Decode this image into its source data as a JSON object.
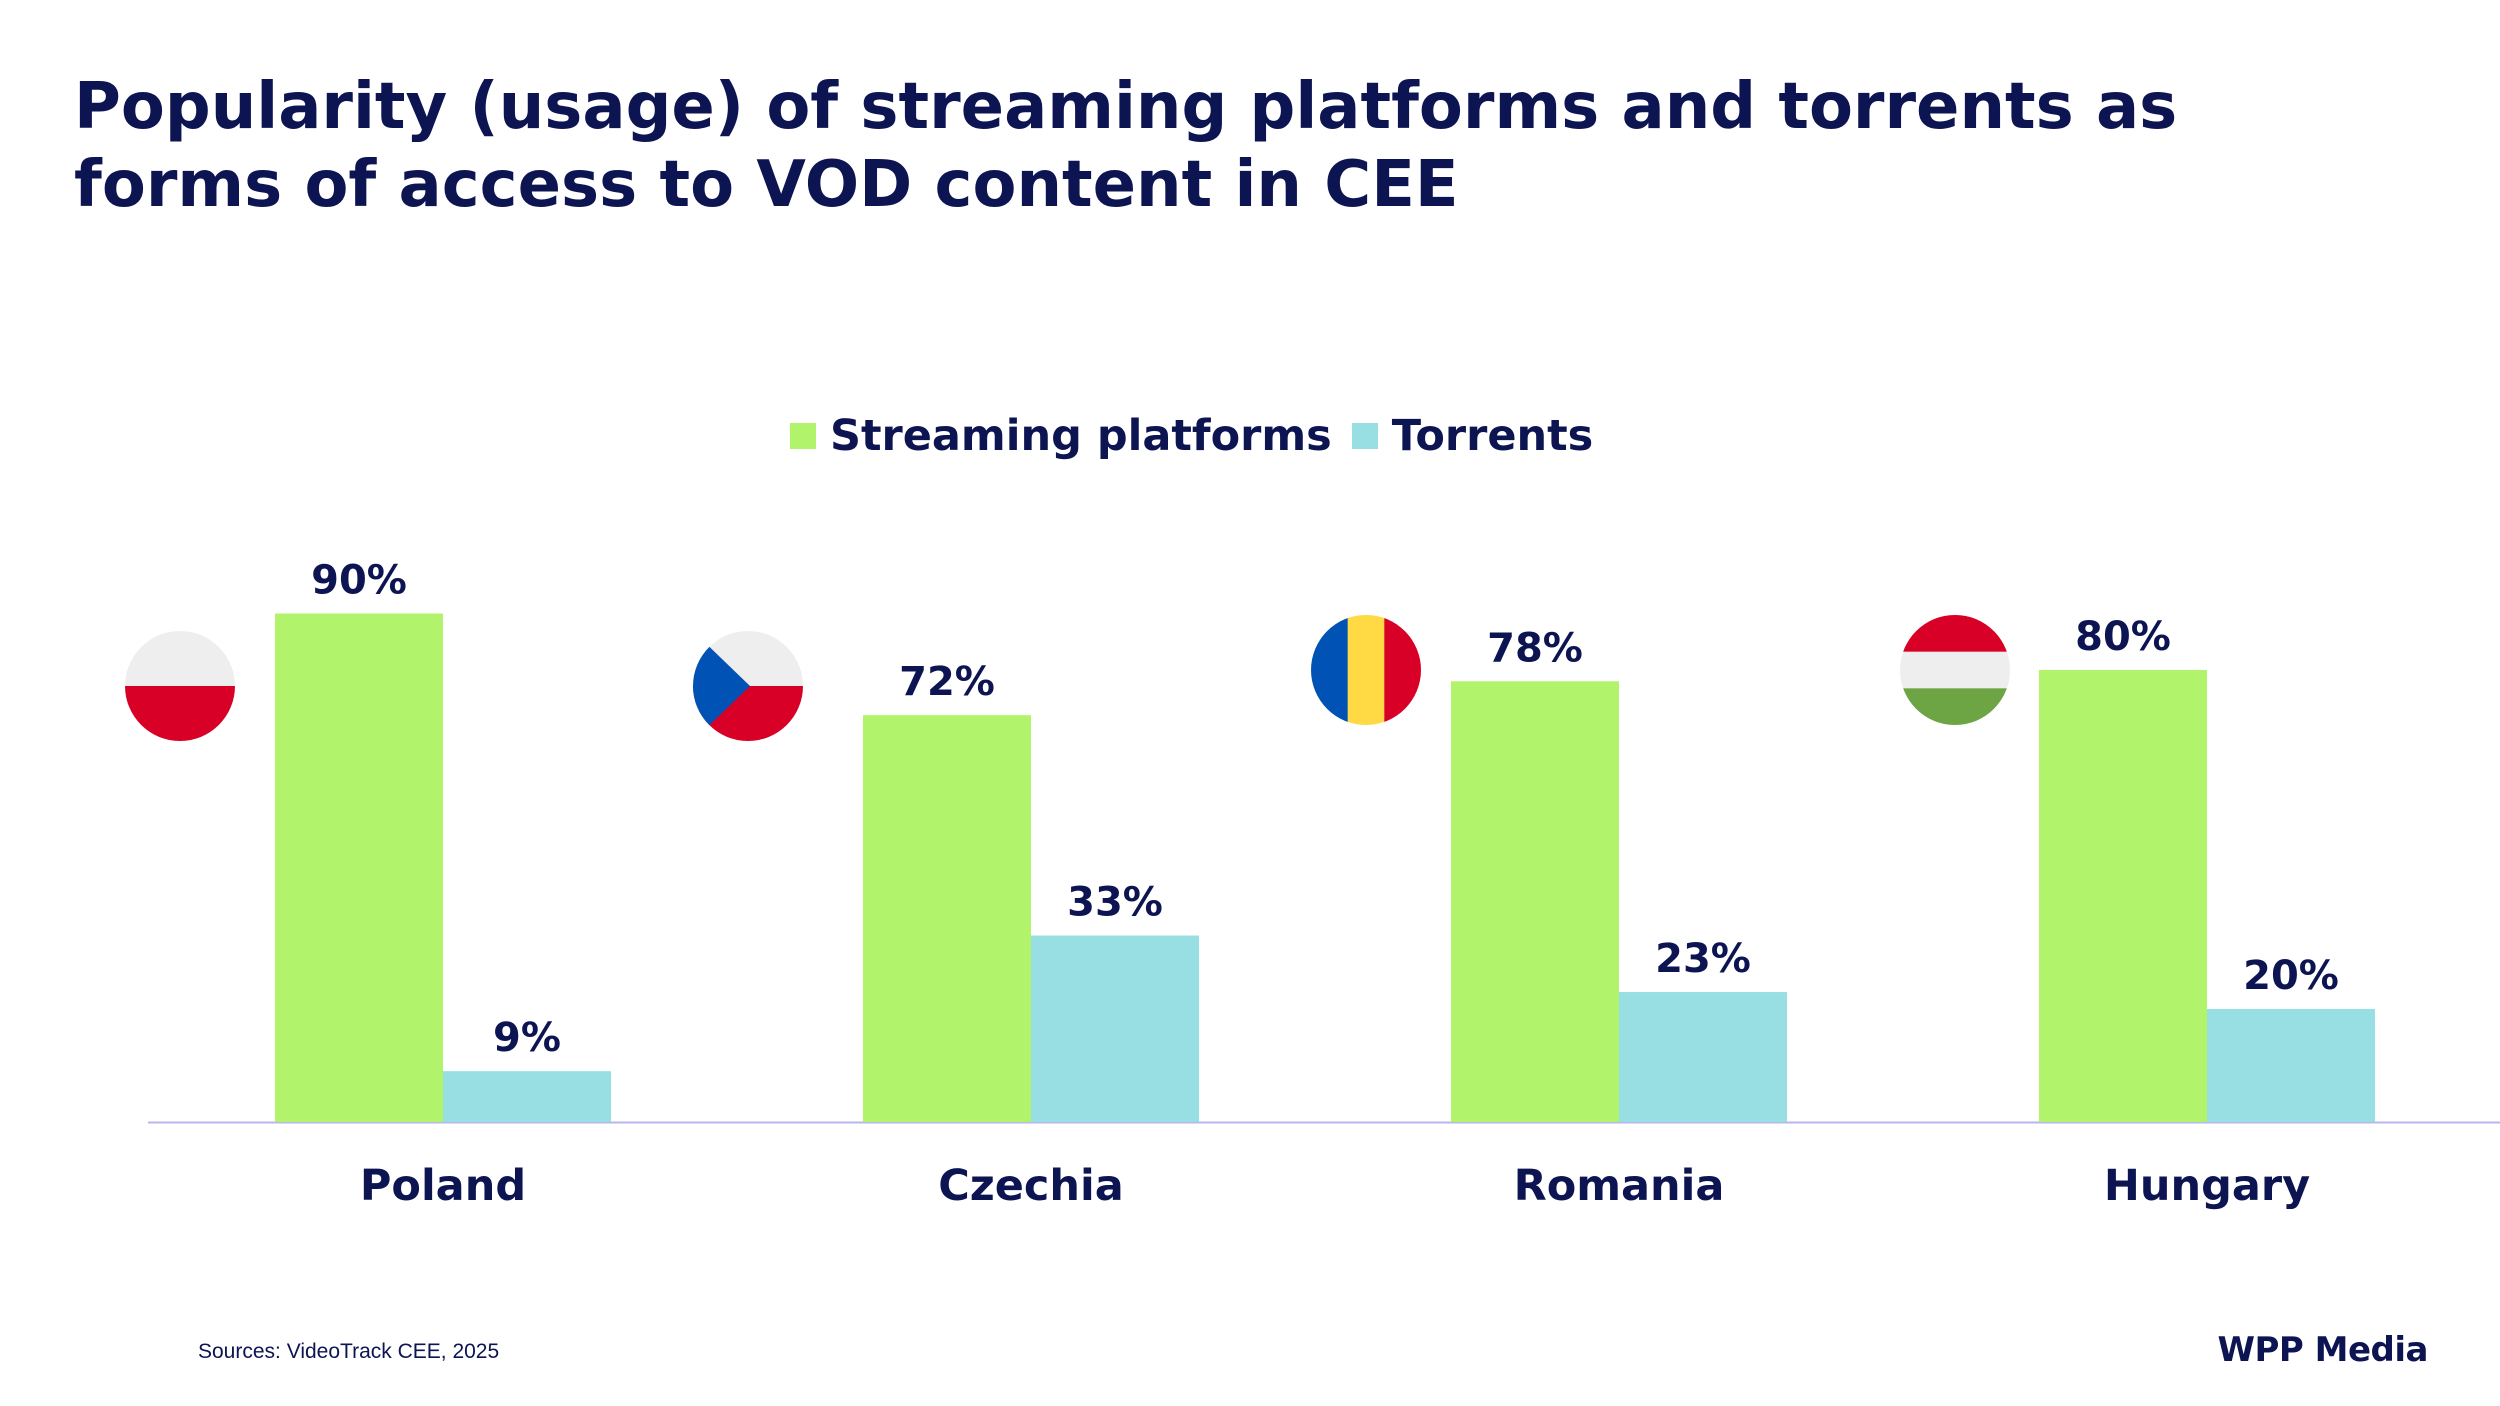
{
  "title": "Popularity (usage) of streaming platforms and torrents as forms of access to VOD content in CEE",
  "colors": {
    "streaming": "#b1f36a",
    "torrents": "#98dfe3",
    "text": "#0d1452",
    "axis": "#b9b6ec"
  },
  "chart_data": {
    "type": "bar",
    "categories": [
      "Poland",
      "Czechia",
      "Romania",
      "Hungary"
    ],
    "series": [
      {
        "name": "Streaming platforms",
        "values": [
          90,
          72,
          78,
          80
        ],
        "labels": [
          "90%",
          "72%",
          "78%",
          "80%"
        ]
      },
      {
        "name": "Torrents",
        "values": [
          9,
          33,
          23,
          20
        ],
        "labels": [
          "9%",
          "33%",
          "23%",
          "20%"
        ]
      }
    ],
    "ylim": [
      0,
      100
    ],
    "legend": "top-center",
    "grid": false,
    "flags": [
      "poland-flag-icon",
      "czechia-flag-icon",
      "romania-flag-icon",
      "hungary-flag-icon"
    ]
  },
  "footer": {
    "sources": "Sources:  VideoTrack CEE, 2025",
    "brand": "WPP Media"
  }
}
